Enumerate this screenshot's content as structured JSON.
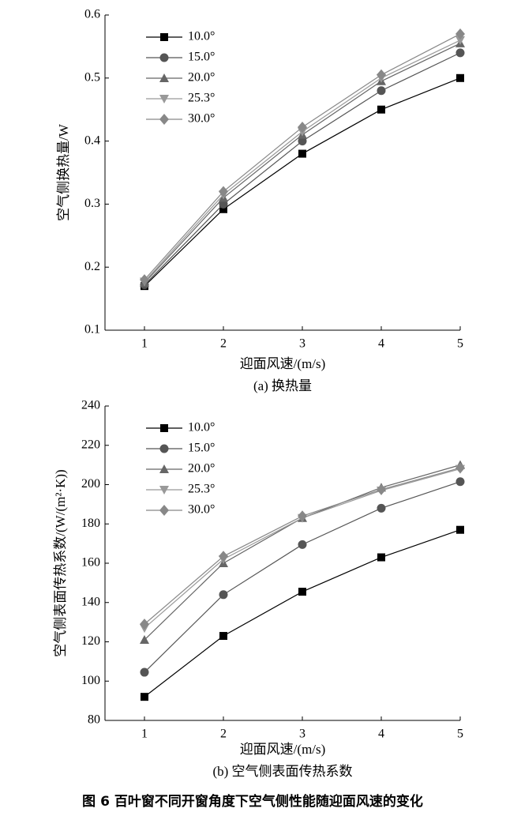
{
  "chart_data": [
    {
      "type": "line",
      "title": "(a) 换热量",
      "xlabel": "迎面风速/(m/s)",
      "ylabel": "空气侧换热量/W",
      "x": [
        1,
        2,
        3,
        4,
        5
      ],
      "xlim": [
        0.5,
        5
      ],
      "xticks": [
        1,
        2,
        3,
        4,
        5
      ],
      "ylim": [
        0.1,
        0.6
      ],
      "yticks": [
        0.1,
        0.2,
        0.3,
        0.4,
        0.5,
        0.6
      ],
      "legend": "upper left",
      "series": [
        {
          "name": "10.0°",
          "color": "#000000",
          "marker": "square",
          "values": [
            0.17,
            0.292,
            0.38,
            0.45,
            0.5
          ]
        },
        {
          "name": "15.0°",
          "color": "#555555",
          "marker": "circle",
          "values": [
            0.172,
            0.3,
            0.4,
            0.48,
            0.54
          ]
        },
        {
          "name": "20.0°",
          "color": "#666666",
          "marker": "triangle-up",
          "values": [
            0.175,
            0.31,
            0.41,
            0.495,
            0.555
          ]
        },
        {
          "name": "25.3°",
          "color": "#999999",
          "marker": "triangle-down",
          "values": [
            0.177,
            0.315,
            0.415,
            0.5,
            0.56
          ]
        },
        {
          "name": "30.0°",
          "color": "#888888",
          "marker": "diamond",
          "values": [
            0.18,
            0.32,
            0.422,
            0.505,
            0.57
          ]
        }
      ]
    },
    {
      "type": "line",
      "title": "(b) 空气侧表面传热系数",
      "xlabel": "迎面风速/(m/s)",
      "ylabel": "空气侧表面传热系数/(W/(m²·K))",
      "x": [
        1,
        2,
        3,
        4,
        5
      ],
      "xlim": [
        0.5,
        5
      ],
      "xticks": [
        1,
        2,
        3,
        4,
        5
      ],
      "ylim": [
        80,
        240
      ],
      "yticks": [
        80,
        100,
        120,
        140,
        160,
        180,
        200,
        220,
        240
      ],
      "legend": "upper left",
      "series": [
        {
          "name": "10.0°",
          "color": "#000000",
          "marker": "square",
          "values": [
            92,
            123,
            145.5,
            163,
            177
          ]
        },
        {
          "name": "15.0°",
          "color": "#555555",
          "marker": "circle",
          "values": [
            104.5,
            144,
            169.5,
            188,
            201.5
          ]
        },
        {
          "name": "20.0°",
          "color": "#666666",
          "marker": "triangle-up",
          "values": [
            121,
            160,
            183,
            198.5,
            210
          ]
        },
        {
          "name": "25.3°",
          "color": "#999999",
          "marker": "triangle-down",
          "values": [
            127,
            162,
            183,
            197,
            208
          ]
        },
        {
          "name": "30.0°",
          "color": "#888888",
          "marker": "diamond",
          "values": [
            129,
            163.5,
            184,
            197.5,
            208.5
          ]
        }
      ]
    }
  ],
  "figure_caption": "图 6   百叶窗不同开窗角度下空气侧性能随迎面风速的变化"
}
